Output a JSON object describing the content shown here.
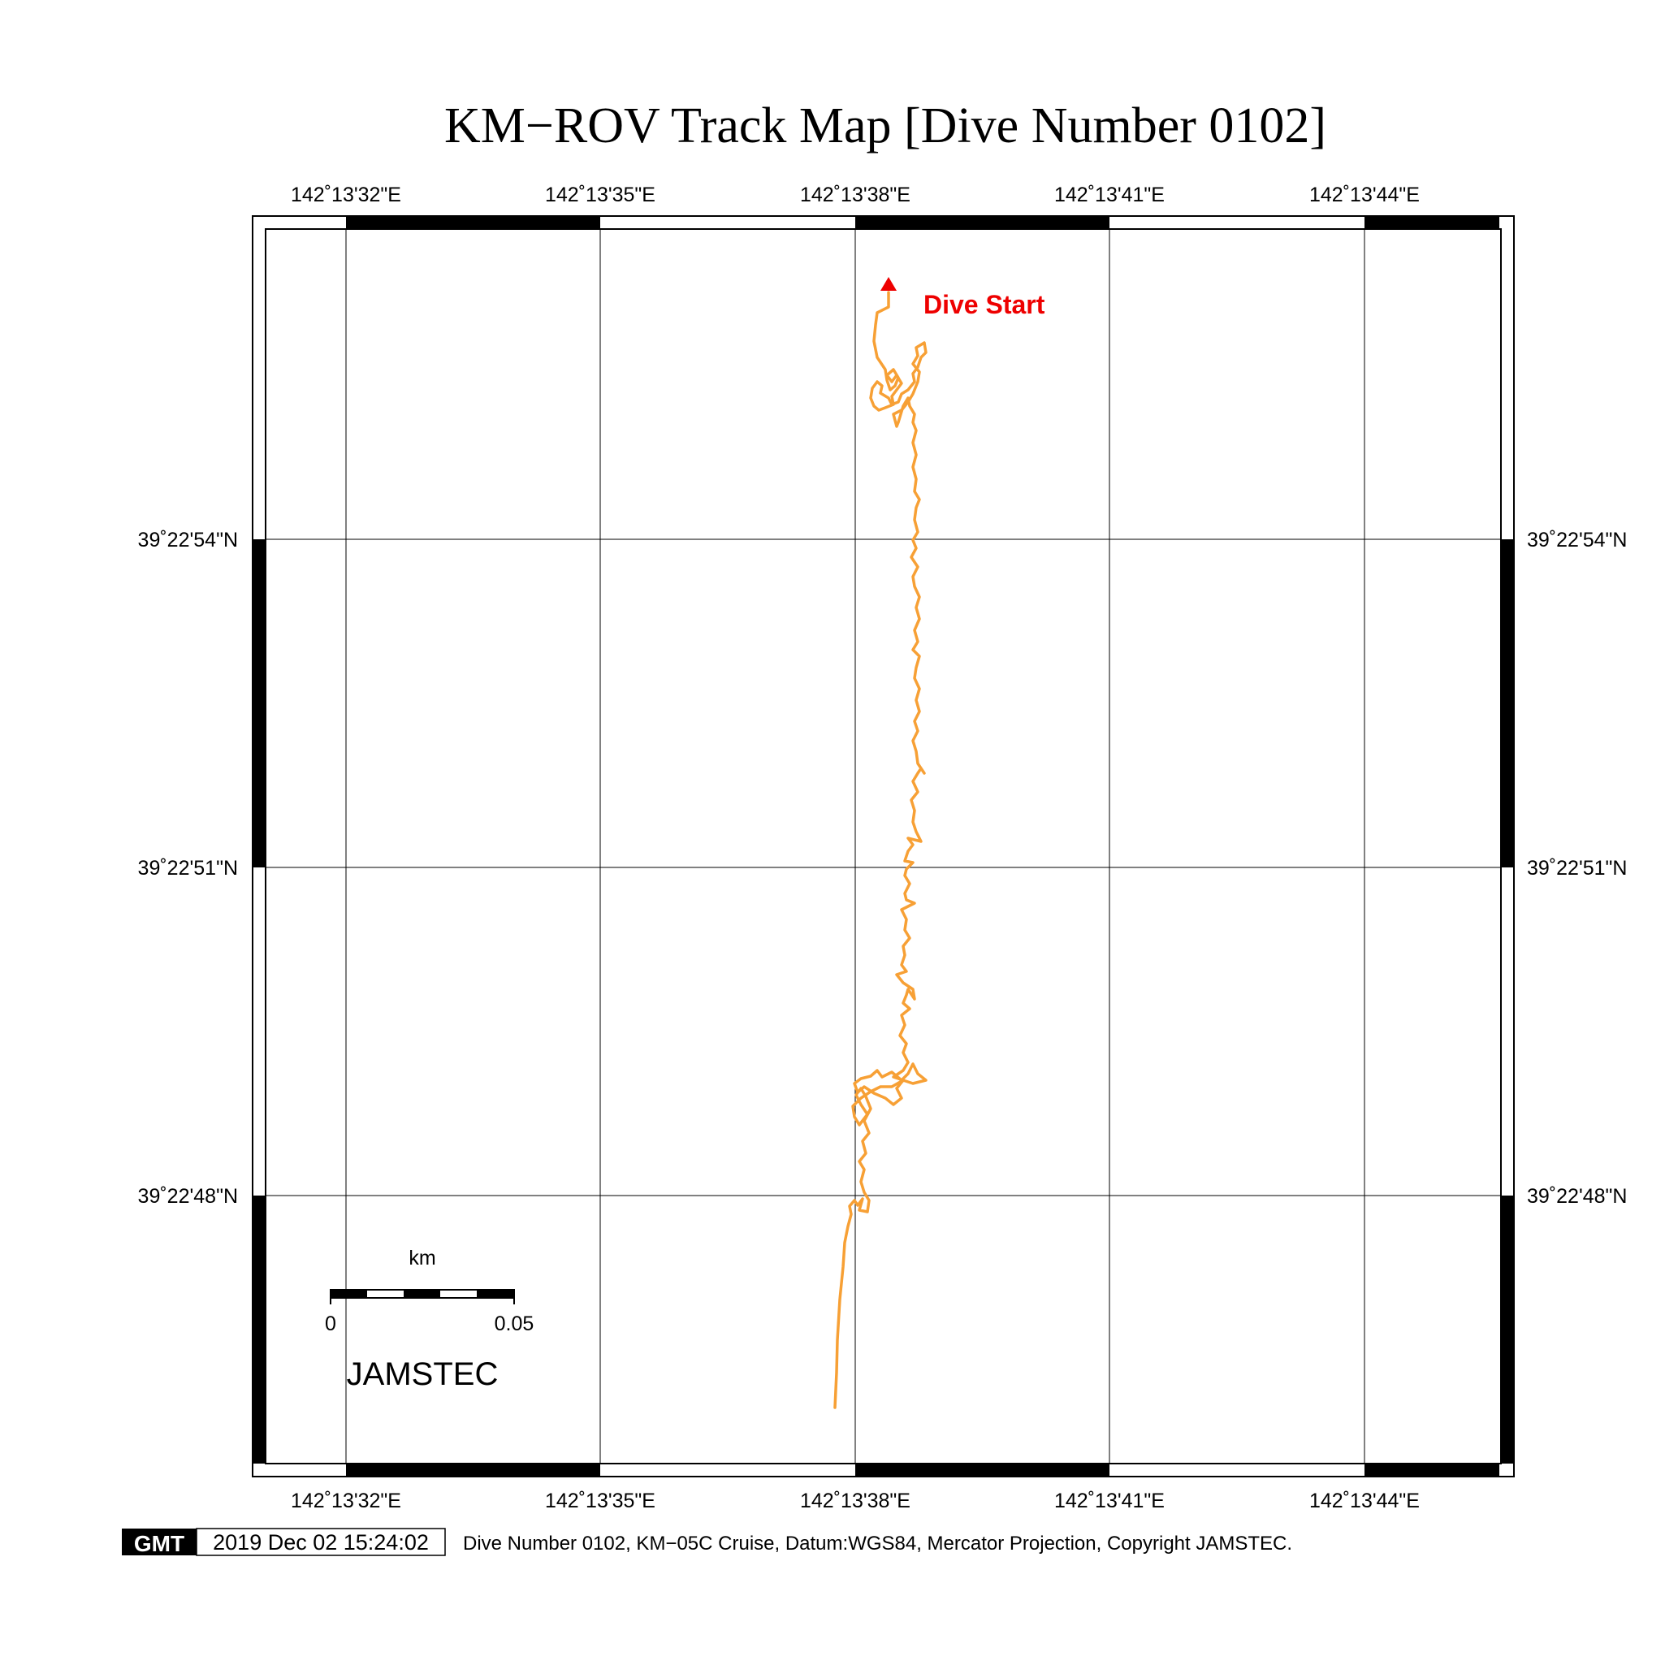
{
  "title": "KM−ROV Track Map [Dive Number 0102]",
  "map": {
    "longitude_labels": [
      "142˚13'32\"E",
      "142˚13'35\"E",
      "142˚13'38\"E",
      "142˚13'41\"E",
      "142˚13'44\"E"
    ],
    "latitude_labels": [
      "39˚22'54\"N",
      "39˚22'51\"N",
      "39˚22'48\"N"
    ],
    "dive_start_label": "Dive Start",
    "track_color": "#f7a035",
    "start_marker_color": "#ee0000"
  },
  "scale_bar": {
    "unit": "km",
    "min_label": "0",
    "max_label": "0.05"
  },
  "organization": "JAMSTEC",
  "footer": {
    "logo_text": "GMT",
    "timestamp": "2019 Dec 02 15:24:02",
    "caption": "Dive Number 0102, KM−05C Cruise, Datum:WGS84, Mercator Projection, Copyright JAMSTEC."
  }
}
